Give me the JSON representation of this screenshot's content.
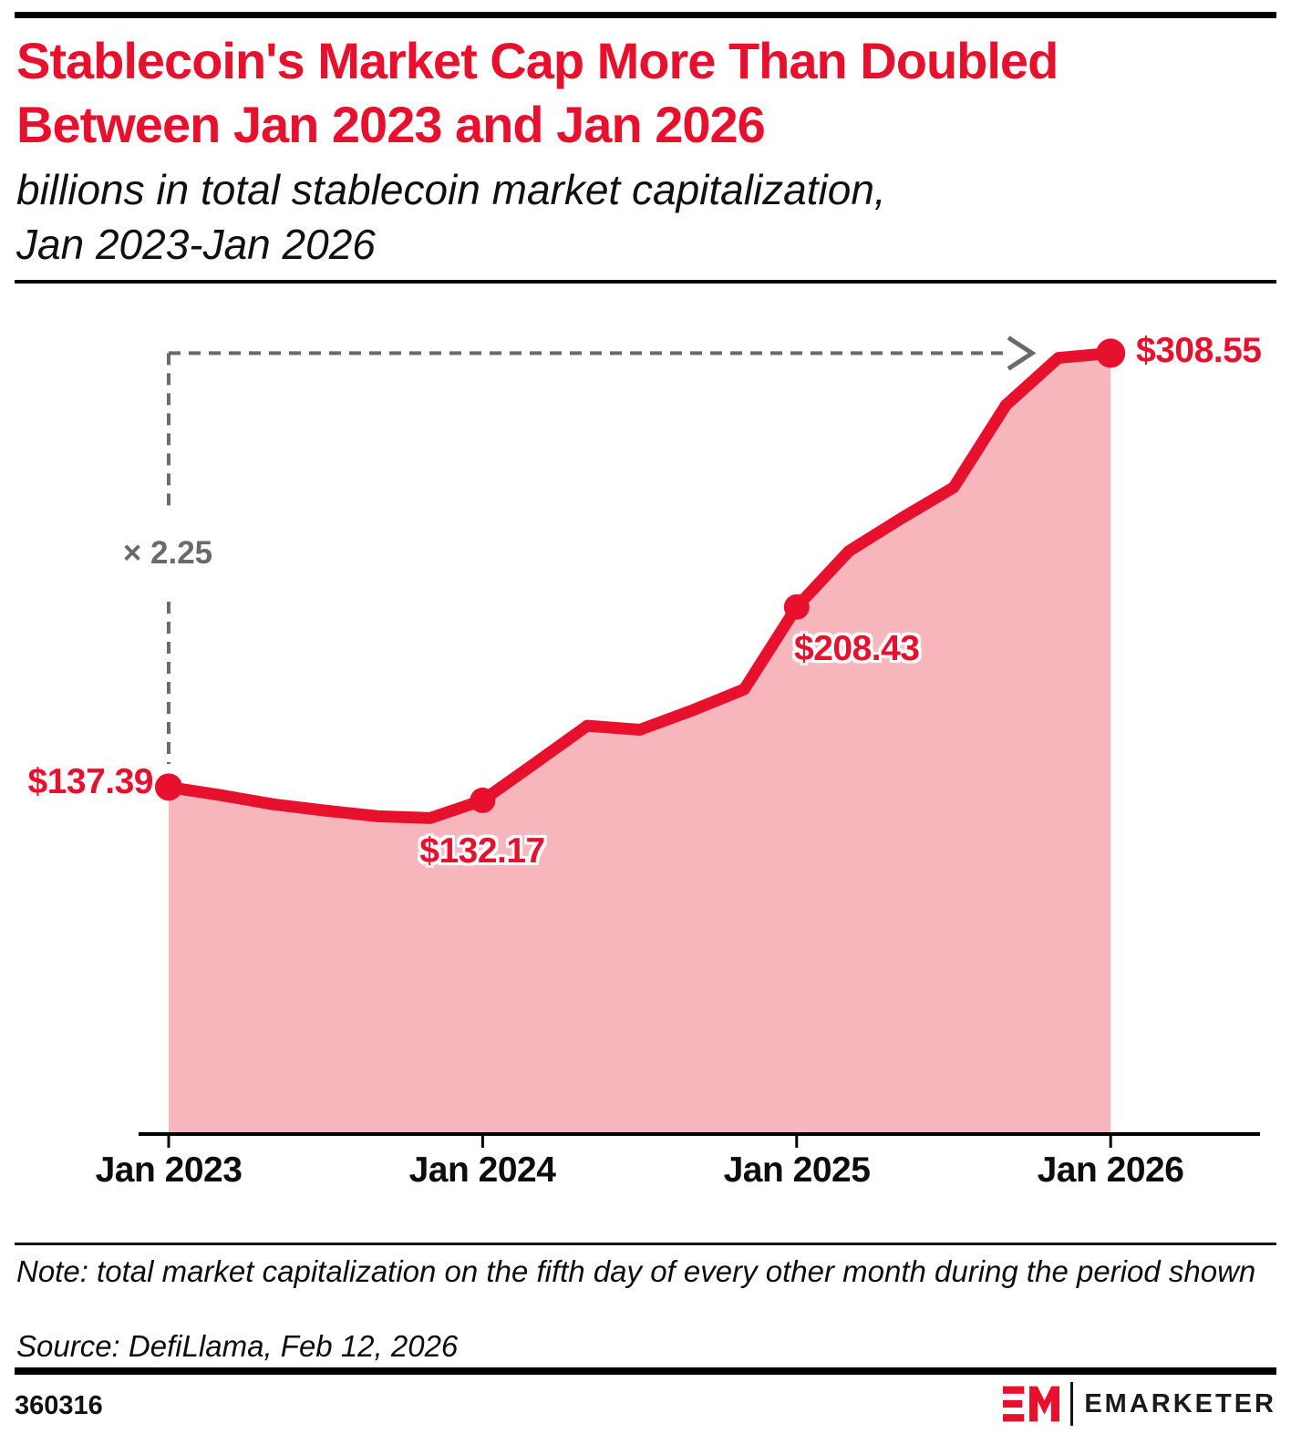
{
  "header": {
    "title_line1": "Stablecoin's Market Cap More Than Doubled",
    "title_line2": "Between Jan 2023 and Jan 2026",
    "subtitle_line1": "billions in total stablecoin market capitalization,",
    "subtitle_line2": "Jan 2023-Jan 2026"
  },
  "chart_data": {
    "type": "area",
    "title": "billions in total stablecoin market capitalization, Jan 2023-Jan 2026",
    "x": [
      "Jan 2023",
      "Mar 2023",
      "May 2023",
      "Jul 2023",
      "Sep 2023",
      "Nov 2023",
      "Jan 2024",
      "Mar 2024",
      "May 2024",
      "Jul 2024",
      "Sep 2024",
      "Nov 2024",
      "Jan 2025",
      "Mar 2025",
      "May 2025",
      "Jul 2025",
      "Sep 2025",
      "Nov 2025",
      "Jan 2026"
    ],
    "values": [
      137.39,
      134.2,
      130.6,
      128.1,
      125.9,
      125.2,
      132.17,
      146.8,
      161.6,
      160.0,
      167.6,
      176.0,
      208.43,
      230.5,
      243.4,
      255.6,
      288.1,
      306.7,
      308.55
    ],
    "x_tick_labels": [
      "Jan 2023",
      "Jan 2024",
      "Jan 2025",
      "Jan 2026"
    ],
    "marked_points": [
      {
        "x": "Jan 2023",
        "value": 137.39,
        "label": "$137.39"
      },
      {
        "x": "Jan 2024",
        "value": 132.17,
        "label": "$132.17"
      },
      {
        "x": "Jan 2025",
        "value": 208.43,
        "label": "$208.43"
      },
      {
        "x": "Jan 2026",
        "value": 308.55,
        "label": "$308.55"
      }
    ],
    "annotation": {
      "label": "× 2.25"
    },
    "ylim": [
      0,
      320
    ],
    "grid": false,
    "legend": "none",
    "colors": {
      "line": "#e8112d",
      "fill": "#f6b6bc",
      "annotation": "#6a6a6a",
      "axis": "#000000"
    }
  },
  "footer": {
    "note": "Note: total market capitalization on the fifth day of every other month during the period shown",
    "source": "Source: DefiLlama, Feb 12, 2026",
    "chart_id": "360316",
    "brand": "EMARKETER"
  }
}
